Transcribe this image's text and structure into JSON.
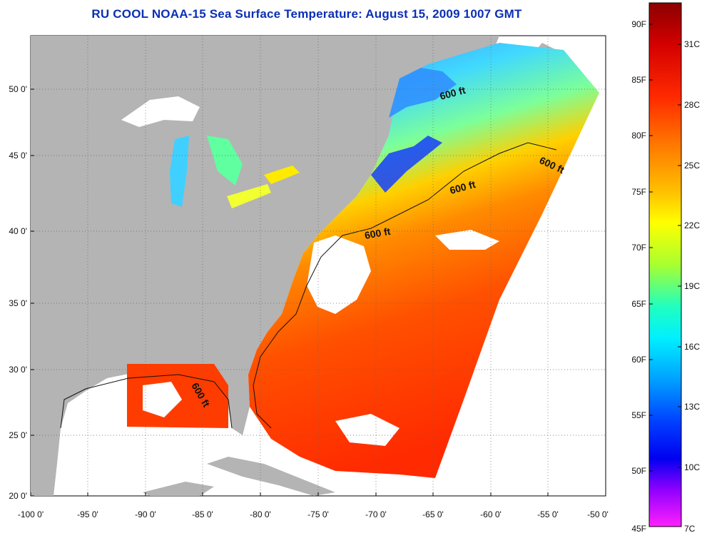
{
  "title": "RU COOL  NOAA-15  Sea Surface Temperature:  August 15, 2009 1007 GMT",
  "map": {
    "lon_ticks": [
      "-100 0'",
      "-95 0'",
      "-90 0'",
      "-85 0'",
      "-80 0'",
      "-75 0'",
      "-70 0'",
      "-65 0'",
      "-60 0'",
      "-55 0'",
      "-50 0'"
    ],
    "lat_ticks": [
      "50 0'",
      "45 0'",
      "40 0'",
      "35 0'",
      "30 0'",
      "25 0'",
      "20 0'"
    ],
    "contour_labels": [
      "600 ft",
      "600 ft",
      "600 ft",
      "600 ft",
      "600 ft"
    ],
    "land_color": "#b4b4b4",
    "cloud_color": "#ffffff"
  },
  "colorbar": {
    "fahrenheit_ticks": [
      "90F",
      "85F",
      "80F",
      "75F",
      "70F",
      "65F",
      "60F",
      "55F",
      "50F",
      "45F"
    ],
    "celsius_ticks": [
      "31C",
      "28C",
      "25C",
      "22C",
      "19C",
      "16C",
      "13C",
      "10C",
      "7C"
    ],
    "colors_top_to_bottom": [
      "#8b0000",
      "#e00000",
      "#ff3a00",
      "#ff7a00",
      "#ffb000",
      "#ffff00",
      "#9cff3a",
      "#30ffb0",
      "#00ffff",
      "#00b4ff",
      "#0060ff",
      "#0000ff",
      "#8a00ff",
      "#ff00ff"
    ]
  }
}
